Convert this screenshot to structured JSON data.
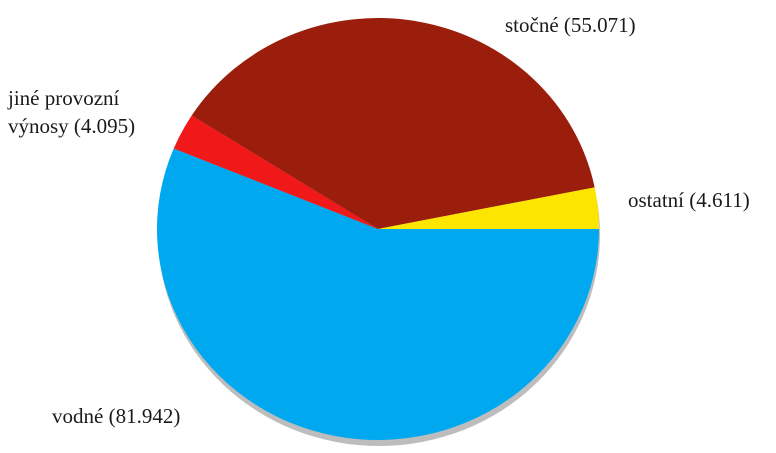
{
  "chart_data": {
    "type": "pie",
    "slices": [
      {
        "label": "vodné (81.942)",
        "value": 81.942,
        "color": "#00a8f0"
      },
      {
        "label": "jiné provozní výnosy (4.095)",
        "value": 4.095,
        "color": "#f01818"
      },
      {
        "label": "stočné (55.071)",
        "value": 55.071,
        "color": "#9b1e0c"
      },
      {
        "label": "ostatní (4.611)",
        "value": 4.611,
        "color": "#fce600"
      }
    ],
    "labels": {
      "vodne": "vodné (81.942)",
      "jine_line1": "jiné provozní",
      "jine_line2": "výnosy (4.095)",
      "stocne": "stočné (55.071)",
      "ostatni": "ostatní (4.611)"
    },
    "shadow_color": "#bdbdbd",
    "legend": "none (labels placed next to slices)"
  }
}
